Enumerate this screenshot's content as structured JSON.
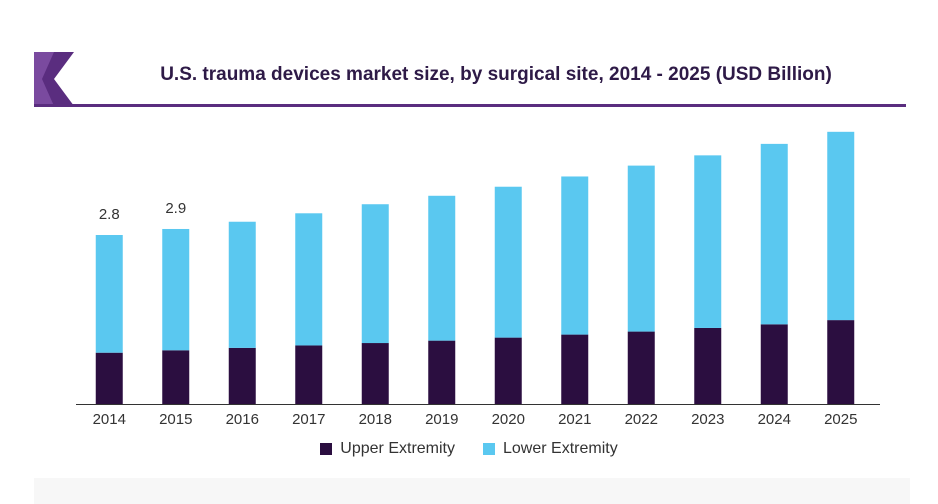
{
  "chart_data": {
    "type": "bar",
    "stacked": true,
    "title": "U.S. trauma devices market size, by surgical site, 2014 - 2025 (USD Billion)",
    "xlabel": "",
    "ylabel": "",
    "categories": [
      "2014",
      "2015",
      "2016",
      "2017",
      "2018",
      "2019",
      "2020",
      "2021",
      "2022",
      "2023",
      "2024",
      "2025"
    ],
    "series": [
      {
        "name": "Upper Extremity",
        "color": "#2b0e40",
        "values": [
          0.85,
          0.89,
          0.93,
          0.97,
          1.01,
          1.05,
          1.1,
          1.15,
          1.2,
          1.26,
          1.32,
          1.39
        ]
      },
      {
        "name": "Lower Extremity",
        "color": "#5ac8f0",
        "values": [
          1.95,
          2.01,
          2.09,
          2.19,
          2.3,
          2.4,
          2.5,
          2.62,
          2.75,
          2.86,
          2.99,
          3.12
        ]
      }
    ],
    "data_labels": [
      {
        "category": "2014",
        "text": "2.8"
      },
      {
        "category": "2015",
        "text": "2.9"
      }
    ],
    "ylim": [
      0,
      4.54
    ],
    "grid": false,
    "legend_position": "bottom-center"
  }
}
